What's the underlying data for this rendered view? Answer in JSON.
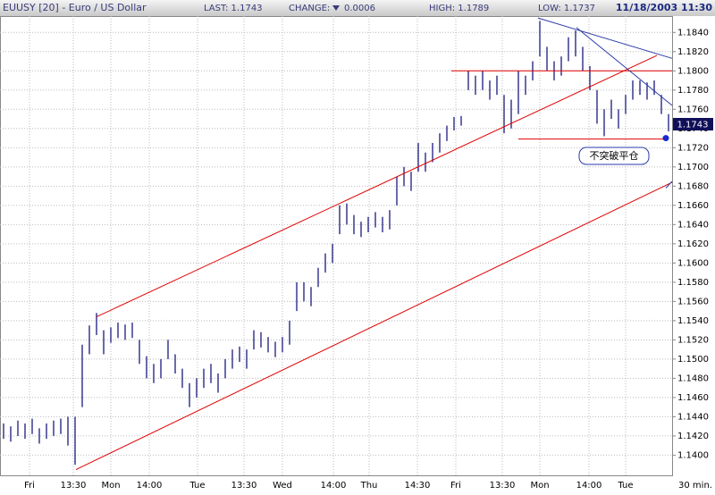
{
  "header": {
    "symbol": "EUUSY [20] - Euro / US Dollar",
    "last": "LAST: 1.1743",
    "change_label": "CHANGE:",
    "change_value": "0.0006",
    "high": "HIGH: 1.1789",
    "low": "LOW: 1.1737",
    "datetime": "11/18/2003 11:30"
  },
  "chart_data": {
    "type": "ohlc",
    "color": "#1a1a80",
    "x": [
      1,
      3,
      5,
      7,
      9,
      11,
      13,
      15,
      17,
      19,
      21,
      23,
      25,
      27,
      29,
      31,
      33,
      35,
      37,
      39,
      41,
      43,
      45,
      47,
      49,
      51,
      53,
      55,
      57,
      59,
      61,
      63,
      65,
      67,
      69,
      71,
      73,
      75,
      77,
      79,
      81,
      83,
      85,
      87,
      89,
      91,
      93,
      95,
      97,
      99,
      101,
      103,
      105,
      107,
      109,
      111,
      113,
      115,
      117,
      119,
      121,
      123,
      125,
      127,
      129,
      131,
      133,
      135,
      137,
      139,
      141,
      143,
      145,
      147,
      149,
      151,
      153,
      155,
      157,
      159,
      161,
      163,
      165,
      167,
      169,
      171,
      173,
      175,
      177,
      179,
      181,
      183,
      185,
      187
    ],
    "high": [
      1.1433,
      1.143,
      1.1436,
      1.1433,
      1.1438,
      1.1428,
      1.1433,
      1.1436,
      1.1438,
      1.144,
      1.144,
      1.1515,
      1.1535,
      1.1548,
      1.153,
      1.1533,
      1.1538,
      1.1536,
      1.1538,
      1.152,
      1.1503,
      1.1495,
      1.15,
      1.152,
      1.1505,
      1.149,
      1.1475,
      1.148,
      1.149,
      1.1495,
      1.1485,
      1.15,
      1.151,
      1.1513,
      1.151,
      1.153,
      1.1528,
      1.1523,
      1.1518,
      1.1523,
      1.154,
      1.158,
      1.158,
      1.1575,
      1.1595,
      1.161,
      1.162,
      1.166,
      1.1662,
      1.165,
      1.1643,
      1.1648,
      1.1653,
      1.1648,
      1.1655,
      1.169,
      1.17,
      1.1695,
      1.1725,
      1.1715,
      1.1725,
      1.1735,
      1.1743,
      1.1752,
      1.1753,
      1.18,
      1.1795,
      1.18,
      1.179,
      1.1795,
      1.1775,
      1.177,
      1.18,
      1.1795,
      1.181,
      1.1852,
      1.1825,
      1.181,
      1.1815,
      1.1835,
      1.1842,
      1.1825,
      1.1805,
      1.178,
      1.176,
      1.177,
      1.176,
      1.1775,
      1.179,
      1.179,
      1.1788,
      1.179,
      1.1775,
      1.1755
    ],
    "low": [
      1.1417,
      1.1414,
      1.142,
      1.1417,
      1.1422,
      1.1412,
      1.1417,
      1.142,
      1.1422,
      1.141,
      1.139,
      1.145,
      1.1505,
      1.1525,
      1.1505,
      1.1517,
      1.1522,
      1.152,
      1.1522,
      1.1495,
      1.148,
      1.1475,
      1.148,
      1.15,
      1.1485,
      1.147,
      1.145,
      1.146,
      1.147,
      1.1475,
      1.1465,
      1.148,
      1.149,
      1.1497,
      1.149,
      1.151,
      1.1512,
      1.1507,
      1.1502,
      1.1507,
      1.1515,
      1.155,
      1.156,
      1.1555,
      1.1575,
      1.159,
      1.16,
      1.163,
      1.164,
      1.163,
      1.1627,
      1.1632,
      1.1637,
      1.1632,
      1.1635,
      1.166,
      1.168,
      1.1675,
      1.1695,
      1.1695,
      1.1705,
      1.1715,
      1.1727,
      1.1738,
      1.1743,
      1.178,
      1.1775,
      1.178,
      1.177,
      1.1775,
      1.1735,
      1.174,
      1.1755,
      1.1775,
      1.179,
      1.1815,
      1.18,
      1.179,
      1.1795,
      1.181,
      1.1815,
      1.18,
      1.178,
      1.1745,
      1.1732,
      1.175,
      1.174,
      1.1755,
      1.177,
      1.1775,
      1.177,
      1.1775,
      1.1755,
      1.1737
    ],
    "xlim": [
      0,
      188
    ],
    "ylim": [
      1.1379,
      1.1857
    ],
    "yticks": [
      {
        "value": 1.14,
        "label": "1.1400"
      },
      {
        "value": 1.142,
        "label": "1.1420"
      },
      {
        "value": 1.144,
        "label": "1.1440"
      },
      {
        "value": 1.146,
        "label": "1.1460"
      },
      {
        "value": 1.148,
        "label": "1.1480"
      },
      {
        "value": 1.15,
        "label": "1.1500"
      },
      {
        "value": 1.152,
        "label": "1.1520"
      },
      {
        "value": 1.154,
        "label": "1.1540"
      },
      {
        "value": 1.156,
        "label": "1.1560"
      },
      {
        "value": 1.158,
        "label": "1.1580"
      },
      {
        "value": 1.16,
        "label": "1.1600"
      },
      {
        "value": 1.162,
        "label": "1.1620"
      },
      {
        "value": 1.164,
        "label": "1.1640"
      },
      {
        "value": 1.166,
        "label": "1.1660"
      },
      {
        "value": 1.168,
        "label": "1.1680"
      },
      {
        "value": 1.17,
        "label": "1.1700"
      },
      {
        "value": 1.172,
        "label": "1.1720"
      },
      {
        "value": 1.174,
        "label": "1.1740"
      },
      {
        "value": 1.176,
        "label": "1.1760"
      },
      {
        "value": 1.178,
        "label": "1.1780"
      },
      {
        "value": 1.18,
        "label": "1.1800"
      },
      {
        "value": 1.182,
        "label": "1.1820"
      },
      {
        "value": 1.184,
        "label": "1.1840"
      }
    ],
    "xticks": [
      {
        "value": 8.25,
        "label": "Fri"
      },
      {
        "value": 20.5,
        "label": "13:30"
      },
      {
        "value": 31,
        "label": "Mon"
      },
      {
        "value": 41.75,
        "label": "14:00"
      },
      {
        "value": 55.25,
        "label": "Tue"
      },
      {
        "value": 68.25,
        "label": "13:30"
      },
      {
        "value": 79,
        "label": "Wed"
      },
      {
        "value": 93.25,
        "label": "14:00"
      },
      {
        "value": 103.25,
        "label": "Thu"
      },
      {
        "value": 116.75,
        "label": "14:30"
      },
      {
        "value": 127.5,
        "label": "Fri"
      },
      {
        "value": 140.5,
        "label": "13:30"
      },
      {
        "value": 151,
        "label": "Mon"
      },
      {
        "value": 164.75,
        "label": "14:00"
      },
      {
        "value": 175,
        "label": "Tue"
      }
    ],
    "x_unit_label": "30 min.",
    "grid": true,
    "lines": [
      {
        "color": "#e00000",
        "points": [
          [
            21.25,
            1.1385
          ],
          [
            188,
            1.1684
          ]
        ]
      },
      {
        "color": "#e00000",
        "points": [
          [
            27,
            1.1544
          ],
          [
            183.75,
            1.1816
          ]
        ]
      },
      {
        "color": "#e00000",
        "points": [
          [
            126.25,
            1.18
          ],
          [
            188,
            1.18
          ]
        ]
      },
      {
        "color": "#e00000",
        "points": [
          [
            145,
            1.1729
          ],
          [
            186.25,
            1.1729
          ]
        ]
      },
      {
        "color": "#2a3aa8",
        "points": [
          [
            150.5,
            1.1855
          ],
          [
            188,
            1.1813
          ]
        ]
      },
      {
        "color": "#2a3aa8",
        "points": [
          [
            161.25,
            1.1845
          ],
          [
            188,
            1.1764
          ]
        ]
      },
      {
        "color": "#2a3aa8",
        "points": [
          [
            186.25,
            1.1678
          ],
          [
            188,
            1.1685
          ]
        ]
      }
    ],
    "marker": [
      186.25,
      1.173
    ],
    "annotation": "不突破平仓",
    "last_price_tag": "1.1743"
  }
}
